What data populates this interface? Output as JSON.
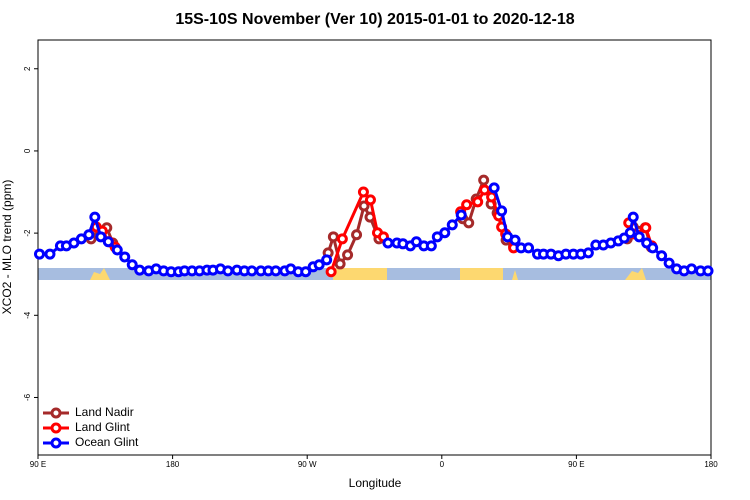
{
  "chart_data": {
    "type": "line",
    "title": "15S-10S November (Ver 10)   2015-01-01 to 2020-12-18",
    "x_label": "Longitude",
    "y_label": "XCO2 - MLO trend (ppm)",
    "xlim": [
      90,
      540
    ],
    "ylim": [
      -7.4,
      2.7
    ],
    "xticks": [
      {
        "value": 90,
        "label": "90 E"
      },
      {
        "value": 180,
        "label": "180"
      },
      {
        "value": 270,
        "label": "90 W"
      },
      {
        "value": 360,
        "label": "0"
      },
      {
        "value": 450,
        "label": "90 E"
      },
      {
        "value": 540,
        "label": "180"
      }
    ],
    "yticks": [
      -6,
      -4,
      -2,
      0,
      2
    ],
    "grid": false,
    "legend": "bottomleft",
    "series": [
      {
        "name": "Land Nadir",
        "color": "#a52a2a",
        "x": [
          125.5,
          128,
          132,
          136,
          140,
          null,
          284,
          287.5,
          292,
          297,
          303,
          308,
          312,
          318,
          null,
          374,
          378,
          383,
          388,
          393,
          397,
          403,
          408,
          null,
          484,
          488,
          496,
          500
        ],
        "values": [
          -2.14,
          -1.92,
          -2.07,
          -1.87,
          -2.24,
          null,
          -2.48,
          -2.09,
          -2.75,
          -2.53,
          -2.04,
          -1.34,
          -1.61,
          -2.14,
          null,
          -1.65,
          -1.75,
          -1.17,
          -0.71,
          -1.29,
          -1.51,
          -2.17,
          -2.31,
          null,
          -2.14,
          -1.85,
          -1.87,
          -2.34
        ]
      },
      {
        "name": "Land Glint",
        "color": "#ff0000",
        "x": [
          129,
          133,
          137.5,
          141.6,
          null,
          286,
          293.5,
          307.6,
          312.3,
          317,
          321,
          null,
          372.6,
          376.6,
          384,
          388.6,
          393.3,
          398,
          400,
          402.7,
          408,
          null,
          485,
          489,
          496.4,
          500.4
        ],
        "values": [
          -1.85,
          -1.95,
          -2.21,
          -2.34,
          null,
          -2.94,
          -2.14,
          -1.0,
          -1.19,
          -1.99,
          -2.09,
          null,
          -1.48,
          -1.31,
          -1.24,
          -0.95,
          -1.12,
          -1.58,
          -1.85,
          -2.02,
          -2.36,
          null,
          -1.75,
          -2.02,
          -1.87,
          -2.31
        ]
      },
      {
        "name": "Ocean Glint",
        "color": "#0000ff",
        "x": [
          91,
          98,
          105,
          109,
          114,
          119,
          124,
          128,
          132,
          137,
          143,
          148,
          153,
          158,
          164,
          169,
          174,
          179,
          184,
          188,
          193,
          198,
          203,
          207,
          212,
          217,
          223,
          228,
          233,
          239,
          244,
          249,
          255,
          259,
          264,
          269,
          274,
          278,
          283,
          null,
          324,
          330,
          334,
          339,
          343,
          348,
          353,
          357,
          362,
          367,
          373,
          null,
          395,
          400,
          404,
          409,
          413,
          418,
          424,
          428,
          433,
          438,
          443,
          448,
          453,
          458,
          463,
          468,
          473,
          478,
          482,
          486,
          488,
          492,
          497,
          501,
          507,
          512,
          517,
          522,
          527,
          533,
          538
        ],
        "values": [
          -2.51,
          -2.51,
          -2.31,
          -2.31,
          -2.24,
          -2.14,
          -2.04,
          -1.61,
          -2.09,
          -2.21,
          -2.41,
          -2.58,
          -2.77,
          -2.9,
          -2.92,
          -2.87,
          -2.92,
          -2.94,
          -2.94,
          -2.92,
          -2.92,
          -2.92,
          -2.9,
          -2.9,
          -2.87,
          -2.92,
          -2.9,
          -2.92,
          -2.92,
          -2.92,
          -2.92,
          -2.92,
          -2.92,
          -2.87,
          -2.94,
          -2.94,
          -2.82,
          -2.77,
          -2.65,
          null,
          -2.24,
          -2.24,
          -2.26,
          -2.31,
          -2.21,
          -2.31,
          -2.31,
          -2.09,
          -1.99,
          -1.8,
          -1.56,
          null,
          -0.9,
          -1.46,
          -2.09,
          -2.17,
          -2.36,
          -2.36,
          -2.51,
          -2.51,
          -2.51,
          -2.55,
          -2.51,
          -2.51,
          -2.51,
          -2.48,
          -2.29,
          -2.29,
          -2.24,
          -2.19,
          -2.12,
          -1.99,
          -1.61,
          -2.09,
          -2.24,
          -2.36,
          -2.55,
          -2.73,
          -2.87,
          -2.92,
          -2.87,
          -2.92,
          -2.92
        ]
      }
    ]
  }
}
